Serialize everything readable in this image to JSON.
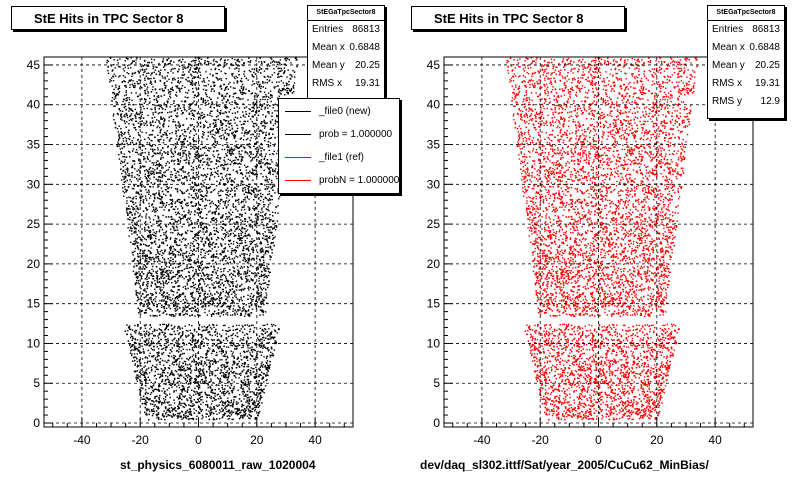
{
  "chart_data": [
    {
      "type": "scatter",
      "title": "StE Hits in TPC Sector 8",
      "xlabel": "st_physics_6080011_raw_1020004",
      "ylabel": "",
      "xlim": [
        -53,
        53
      ],
      "ylim": [
        -0.5,
        46
      ],
      "xticks": [
        -40,
        -20,
        0,
        20,
        40
      ],
      "yticks": [
        0,
        5,
        10,
        15,
        20,
        25,
        30,
        35,
        40,
        45
      ],
      "grid": true,
      "color": "#000000",
      "stats": {
        "name": "StEGaTpcSector8",
        "entries": {
          "label": "Entries",
          "value": "86813"
        },
        "mean_x": {
          "label": "Mean x",
          "value": "0.6848"
        },
        "mean_y": {
          "label": "Mean y",
          "value": "20.25"
        },
        "rms_x": {
          "label": "RMS x",
          "value": "19.31"
        }
      },
      "legend": {
        "placement": "top-right",
        "entries": [
          {
            "label": "_file0 (new)",
            "color": "#000000"
          },
          {
            "label": "prob = 1.000000",
            "color": "#000000"
          },
          {
            "label": "_file1 (ref)",
            "color": "#ff0000"
          },
          {
            "label": "probN = 1.000000",
            "color": "#ff0000"
          }
        ]
      }
    },
    {
      "type": "scatter",
      "title": "StE Hits in TPC Sector 8",
      "xlabel": "dev/daq_sl302.ittf/Sat/year_2005/CuCu62_MinBias/",
      "ylabel": "",
      "xlim": [
        -53,
        53
      ],
      "ylim": [
        -0.5,
        46
      ],
      "xticks": [
        -40,
        -20,
        0,
        20,
        40
      ],
      "yticks": [
        0,
        5,
        10,
        15,
        20,
        25,
        30,
        35,
        40,
        45
      ],
      "grid": true,
      "color": "#ff0000",
      "stats": {
        "name": "StEGaTpcSector8",
        "entries": {
          "label": "Entries",
          "value": "86813"
        },
        "mean_x": {
          "label": "Mean x",
          "value": "0.6848"
        },
        "mean_y": {
          "label": "Mean y",
          "value": "20.25"
        },
        "rms_x": {
          "label": "RMS x",
          "value": "19.31"
        },
        "rms_y": {
          "label": "RMS y",
          "value": "12.9"
        }
      }
    }
  ]
}
